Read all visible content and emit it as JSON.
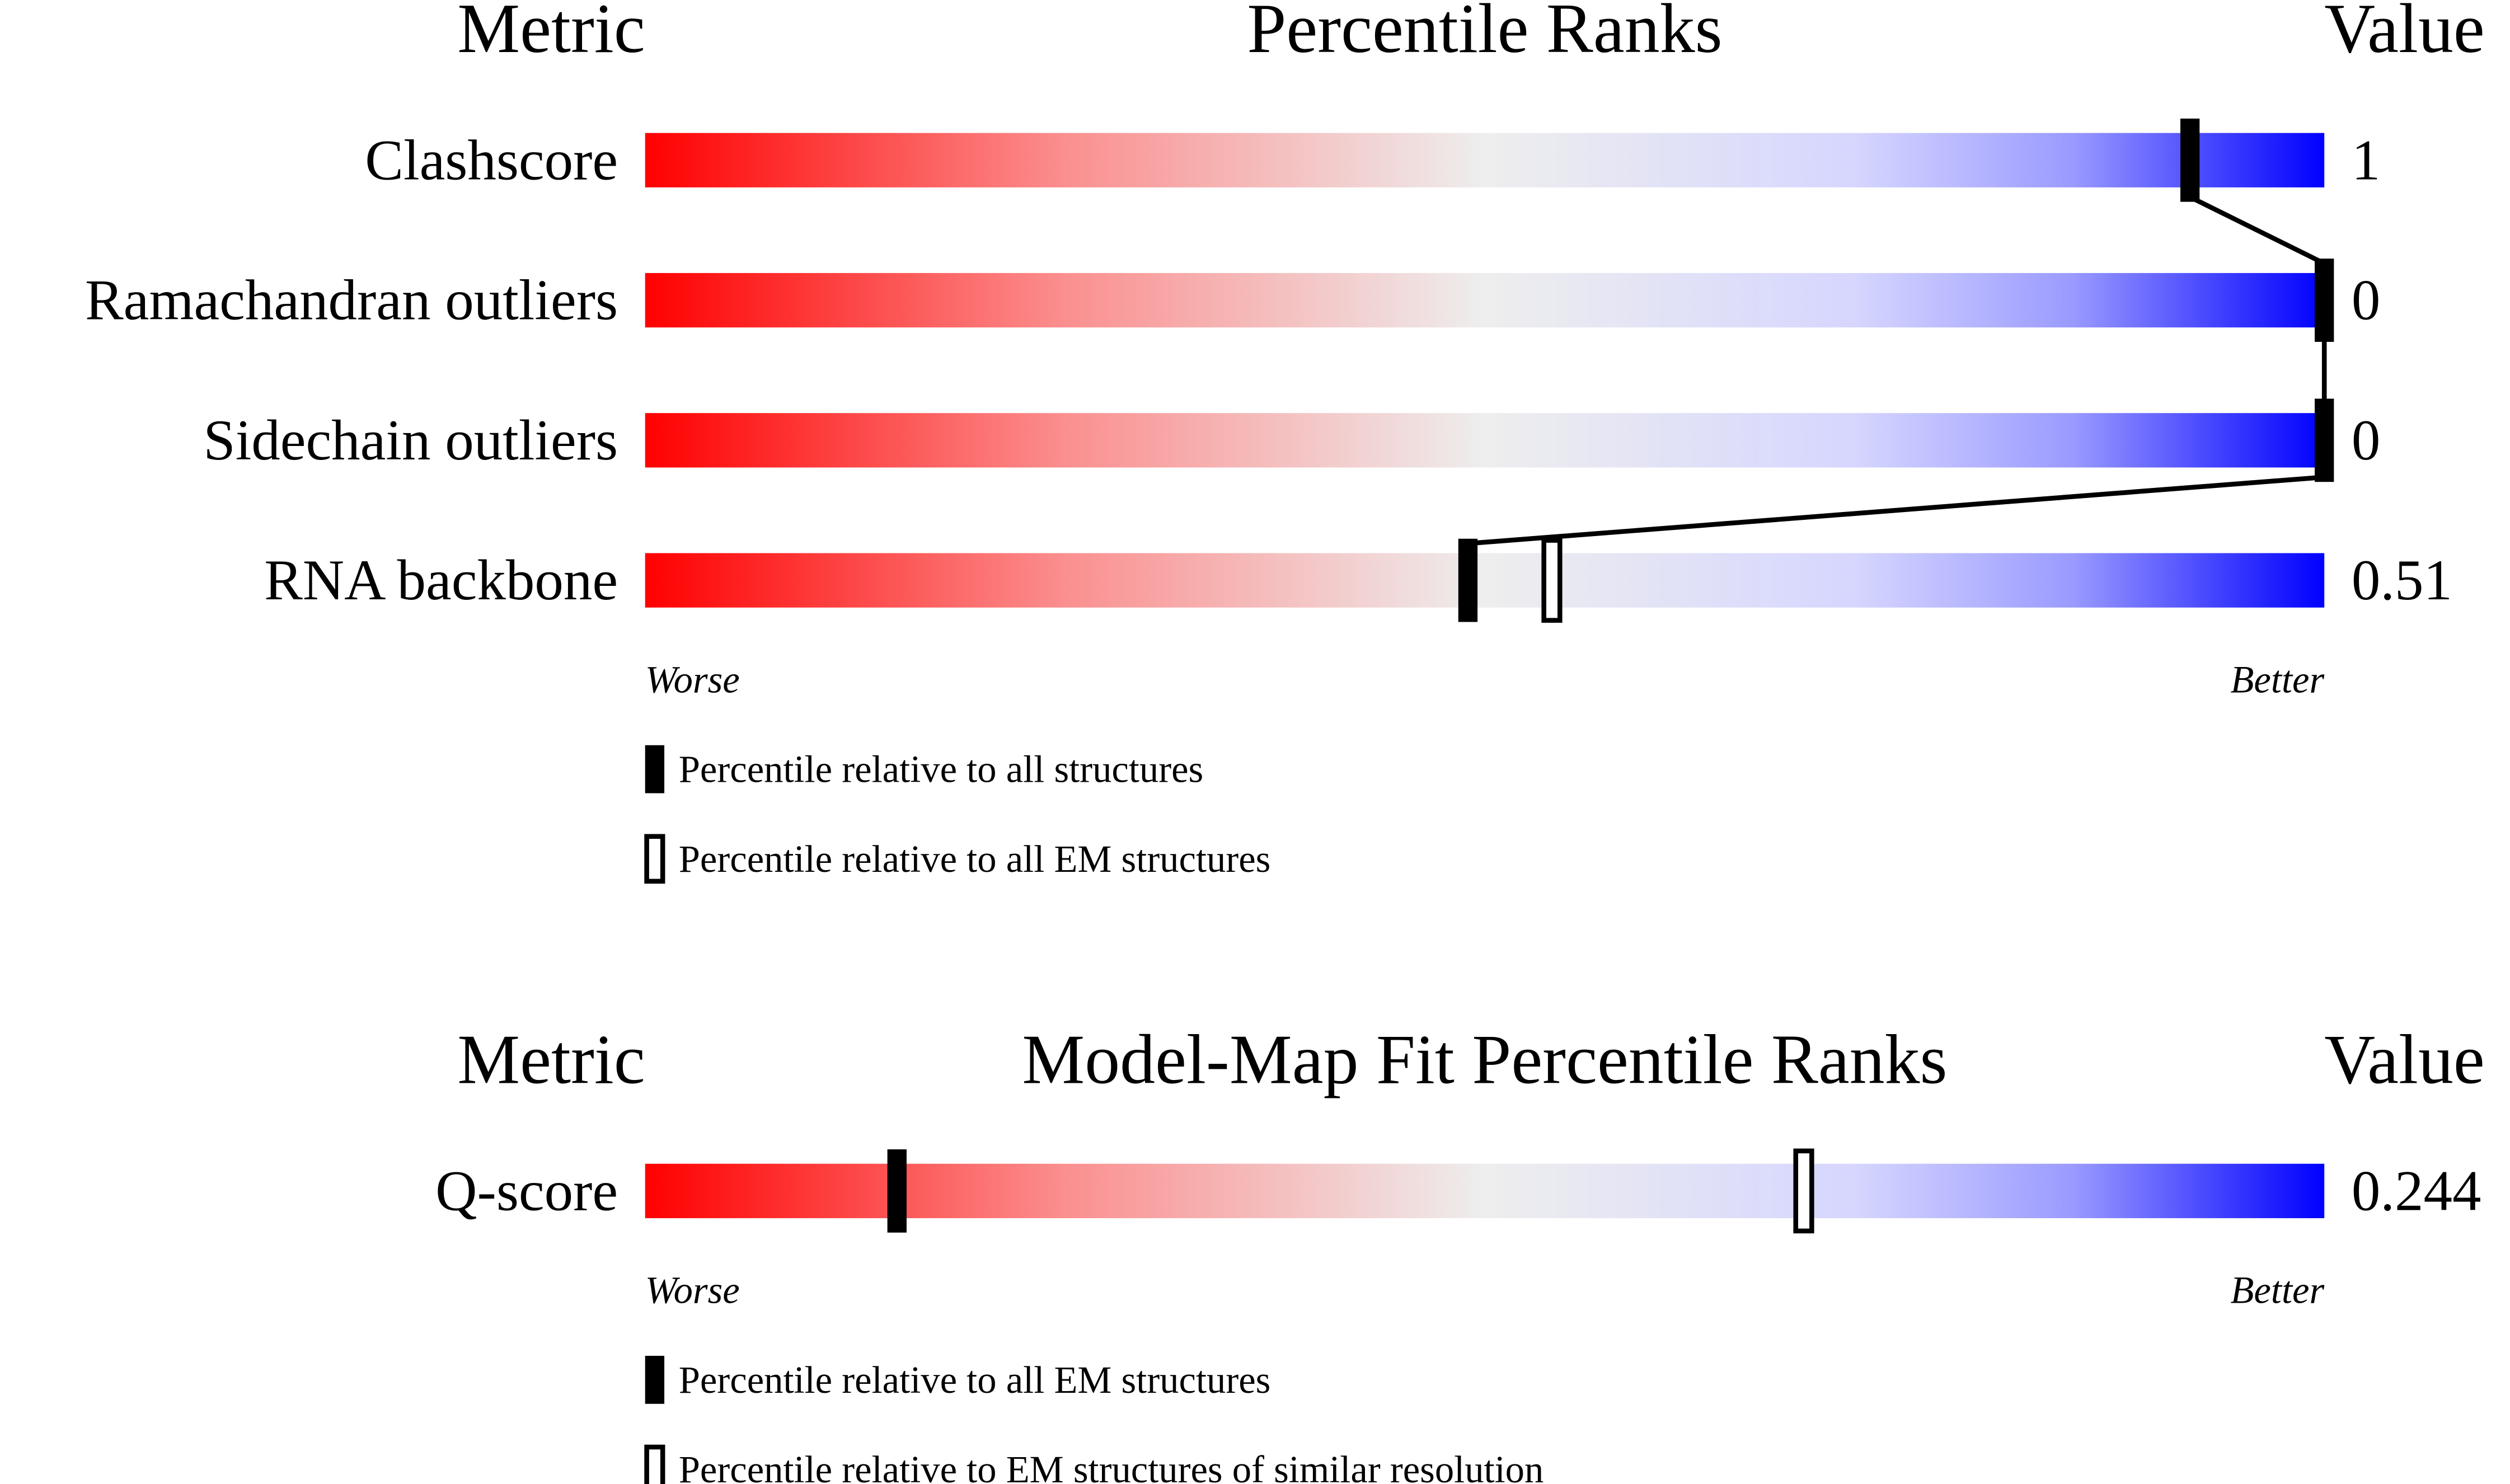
{
  "chart_data": [
    {
      "type": "percentile-slider",
      "metric_header": "Metric",
      "title": "Percentile Ranks",
      "value_header": "Value",
      "categories": [
        "Clashscore",
        "Ramachandran outliers",
        "Sidechain outliers",
        "RNA backbone"
      ],
      "metric_values": [
        1,
        0,
        0,
        0.51
      ],
      "series": [
        {
          "name": "Percentile relative to all structures",
          "marker": "filled",
          "color": "#000000",
          "values": [
            92,
            100,
            100,
            49
          ]
        },
        {
          "name": "Percentile relative to all EM structures",
          "marker": "open",
          "color": "#000000",
          "values": [
            null,
            null,
            null,
            54
          ]
        }
      ],
      "xlim": [
        0,
        100
      ],
      "worse_label": "Worse",
      "better_label": "Better",
      "connect_filled": true
    },
    {
      "type": "percentile-slider",
      "metric_header": "Metric",
      "title": "Model-Map Fit Percentile Ranks",
      "value_header": "Value",
      "categories": [
        "Q-score"
      ],
      "metric_values": [
        0.244
      ],
      "series": [
        {
          "name": "Percentile relative to all EM structures",
          "marker": "filled",
          "color": "#000000",
          "values": [
            15
          ]
        },
        {
          "name": "Percentile relative to EM structures of similar resolution",
          "marker": "open",
          "color": "#000000",
          "values": [
            69
          ]
        }
      ],
      "xlim": [
        0,
        100
      ],
      "worse_label": "Worse",
      "better_label": "Better",
      "connect_filled": true
    }
  ]
}
